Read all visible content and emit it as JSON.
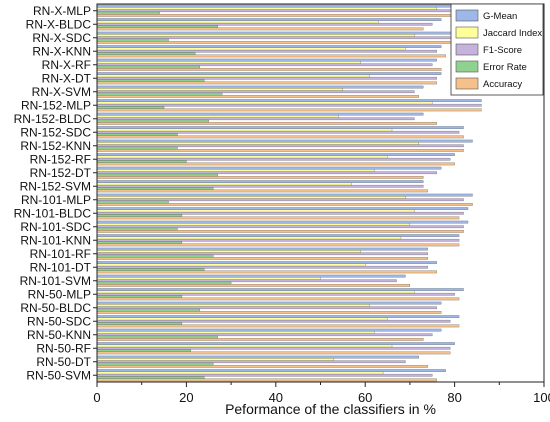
{
  "chart_data": {
    "type": "bar",
    "orientation": "horizontal",
    "title": "",
    "xlabel": "Peformance of the classifiers in %",
    "ylabel": "",
    "xlim": [
      0,
      100
    ],
    "xticks": [
      0,
      20,
      40,
      60,
      80,
      100
    ],
    "grid": false,
    "legend_position": "top-right",
    "categories": [
      "RN-X-MLP",
      "RN-X-BLDC",
      "RN-X-SDC",
      "RN-X-KNN",
      "RN-X-RF",
      "RN-X-DT",
      "RN-X-SVM",
      "RN-152-MLP",
      "RN-152-BLDC",
      "RN-152-SDC",
      "RN-152-KNN",
      "RN-152-RF",
      "RN-152-DT",
      "RN-152-SVM",
      "RN-101-MLP",
      "RN-101-BLDC",
      "RN-101-SDC",
      "RN-101-KNN",
      "RN-101-RF",
      "RN-101-DT",
      "RN-101-SVM",
      "RN-50-MLP",
      "RN-50-BLDC",
      "RN-50-SDC",
      "RN-50-KNN",
      "RN-50-RF",
      "RN-50-DT",
      "RN-50-SVM"
    ],
    "series": [
      {
        "name": "G-Mean",
        "color": "#9db8e8",
        "values": [
          87,
          77,
          84,
          77,
          76,
          77,
          73,
          86,
          73,
          82,
          84,
          80,
          77,
          73,
          84,
          83,
          83,
          81,
          74,
          76,
          69,
          82,
          77,
          81,
          77,
          80,
          72,
          78
        ]
      },
      {
        "name": "Jaccard Index",
        "color": "#ffff99",
        "values": [
          76,
          63,
          71,
          69,
          59,
          61,
          55,
          75,
          54,
          66,
          72,
          65,
          62,
          57,
          69,
          71,
          70,
          68,
          59,
          60,
          50,
          71,
          61,
          65,
          62,
          66,
          53,
          64
        ]
      },
      {
        "name": "F1-Score",
        "color": "#c5b3dd",
        "values": [
          87,
          75,
          83,
          76,
          75,
          76,
          71,
          86,
          71,
          81,
          82,
          79,
          76,
          73,
          82,
          82,
          82,
          81,
          74,
          74,
          67,
          80,
          76,
          79,
          75,
          79,
          69,
          75
        ]
      },
      {
        "name": "Error Rate",
        "color": "#8fd18f",
        "values": [
          14,
          27,
          16,
          22,
          23,
          24,
          28,
          15,
          25,
          18,
          18,
          20,
          27,
          26,
          16,
          19,
          18,
          19,
          26,
          24,
          30,
          19,
          23,
          19,
          27,
          21,
          26,
          24
        ]
      },
      {
        "name": "Accuracy",
        "color": "#f5c08a",
        "values": [
          87,
          73,
          84,
          78,
          77,
          76,
          72,
          86,
          76,
          82,
          82,
          80,
          73,
          74,
          84,
          81,
          82,
          81,
          74,
          76,
          70,
          81,
          77,
          81,
          73,
          79,
          74,
          76
        ]
      }
    ]
  }
}
